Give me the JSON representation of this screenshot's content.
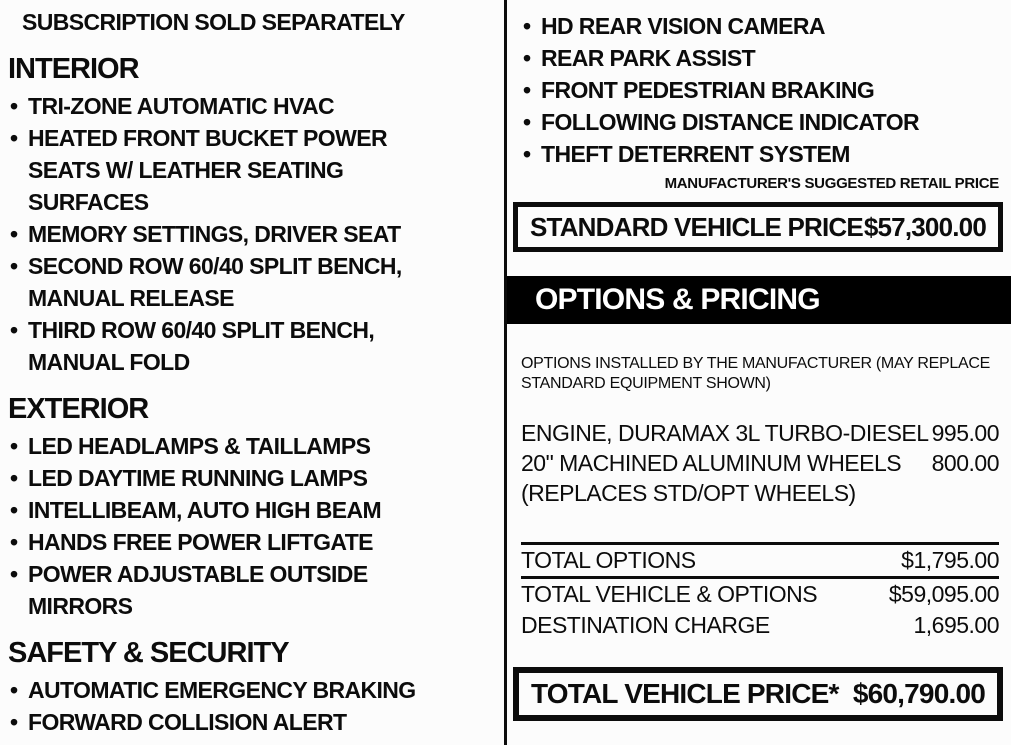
{
  "colors": {
    "paper": "#fcfcfc",
    "ink": "#0c0c0c",
    "banner_bg": "#000000",
    "banner_text": "#ffffff"
  },
  "left_column": {
    "continuation_line": "SUBSCRIPTION SOLD SEPARATELY",
    "sections": [
      {
        "heading": "INTERIOR",
        "items": [
          "TRI-ZONE AUTOMATIC HVAC",
          "HEATED FRONT BUCKET POWER\nSEATS W/ LEATHER SEATING\nSURFACES",
          "MEMORY SETTINGS, DRIVER SEAT",
          "SECOND ROW 60/40 SPLIT BENCH,\nMANUAL RELEASE",
          "THIRD ROW 60/40 SPLIT BENCH,\nMANUAL FOLD"
        ]
      },
      {
        "heading": "EXTERIOR",
        "items": [
          "LED HEADLAMPS & TAILLAMPS",
          "LED DAYTIME RUNNING LAMPS",
          "INTELLIBEAM, AUTO HIGH BEAM",
          "HANDS FREE POWER LIFTGATE",
          "POWER ADJUSTABLE OUTSIDE\nMIRRORS"
        ]
      },
      {
        "heading": "SAFETY & SECURITY",
        "items": [
          "AUTOMATIC EMERGENCY BRAKING",
          "FORWARD COLLISION ALERT"
        ]
      }
    ]
  },
  "right_column": {
    "items": [
      "HD REAR VISION CAMERA",
      "REAR PARK ASSIST",
      "FRONT PEDESTRIAN BRAKING",
      "FOLLOWING DISTANCE INDICATOR",
      "THEFT DETERRENT SYSTEM"
    ],
    "msrp_note": "MANUFACTURER'S SUGGESTED RETAIL PRICE",
    "standard_price": {
      "label": "STANDARD VEHICLE PRICE",
      "value": "$57,300.00"
    },
    "options_banner": "OPTIONS & PRICING",
    "options_note": "OPTIONS INSTALLED BY THE MANUFACTURER (MAY REPLACE\nSTANDARD EQUIPMENT SHOWN)",
    "option_rows": [
      {
        "label": "ENGINE, DURAMAX 3L TURBO-DIESEL",
        "value": "995.00"
      },
      {
        "label": "20\" MACHINED ALUMINUM WHEELS",
        "value": "800.00"
      },
      {
        "label": "(REPLACES STD/OPT WHEELS)",
        "value": ""
      }
    ],
    "total_rows": [
      {
        "label": "TOTAL OPTIONS",
        "value": "$1,795.00"
      },
      {
        "label": "TOTAL VEHICLE & OPTIONS",
        "value": "$59,095.00"
      },
      {
        "label": "DESTINATION CHARGE",
        "value": "1,695.00"
      }
    ],
    "total_price": {
      "label": "TOTAL VEHICLE PRICE*",
      "value": "$60,790.00"
    }
  }
}
